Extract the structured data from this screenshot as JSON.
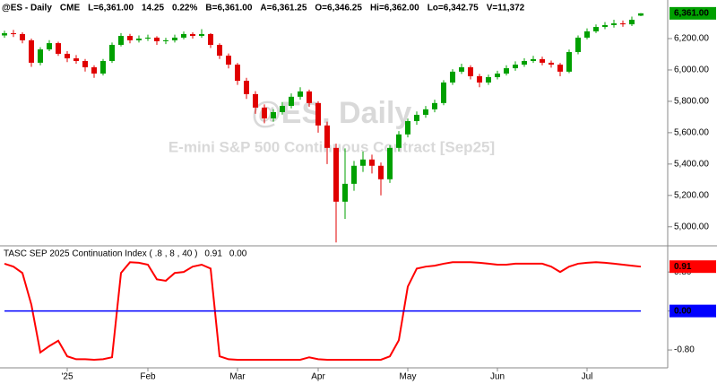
{
  "header": [
    "@ES - Daily",
    "CME",
    "L=6,361.00",
    "14.25",
    "0.22%",
    "B=6,361.00",
    "A=6,361.25",
    "O=6,346.25",
    "Hi=6,362.00",
    "Lo=6,342.75",
    "V=11,372"
  ],
  "watermark": {
    "symbol": "@ES, Daily",
    "name": "E-mini S&P 500 Continuous Contract [Sep25]"
  },
  "chart_data": [
    {
      "type": "candlestick",
      "up_color": "#00a000",
      "down_color": "#e00000",
      "open": [
        6220,
        6234,
        6229,
        6189,
        6046,
        6131,
        6171,
        6103,
        6074,
        6057,
        6017,
        5977,
        6057,
        6160,
        6217,
        6189,
        6200,
        6206,
        6183,
        6189,
        6206,
        6229,
        6217,
        6229,
        6160,
        6091,
        6034,
        5931,
        5846,
        5760,
        5691,
        5731,
        5771,
        5829,
        5863,
        5789,
        5646,
        5503,
        5160,
        5274,
        5389,
        5429,
        5389,
        5303,
        5503,
        5589,
        5674,
        5714,
        5749,
        5789,
        5920,
        5989,
        6017,
        5960,
        5920,
        5954,
        5977,
        6011,
        6034,
        6057,
        6069,
        6046,
        6034,
        5989,
        6114,
        6206,
        6246,
        6274,
        6286,
        6297,
        6291,
        6346.25
      ],
      "high": [
        6250,
        6255,
        6240,
        6200,
        6145,
        6190,
        6180,
        6120,
        6095,
        6070,
        6030,
        6070,
        6175,
        6235,
        6230,
        6220,
        6225,
        6215,
        6205,
        6225,
        6245,
        6240,
        6260,
        6235,
        6170,
        6105,
        6045,
        5950,
        5865,
        5780,
        5750,
        5795,
        5850,
        5890,
        5875,
        5800,
        5670,
        5530,
        5500,
        5420,
        5480,
        5460,
        5410,
        5520,
        5610,
        5690,
        5735,
        5770,
        5810,
        5935,
        6005,
        6040,
        6030,
        5975,
        5970,
        5995,
        6030,
        6055,
        6075,
        6090,
        6085,
        6060,
        6045,
        6130,
        6220,
        6265,
        6290,
        6305,
        6320,
        6315,
        6340,
        6362
      ],
      "low": [
        6205,
        6210,
        6170,
        6020,
        6030,
        6120,
        6090,
        6050,
        6040,
        5990,
        5950,
        5965,
        6045,
        6150,
        6170,
        6175,
        6185,
        6160,
        6165,
        6175,
        6195,
        6200,
        6205,
        6140,
        6070,
        6010,
        5905,
        5815,
        5720,
        5660,
        5670,
        5715,
        5755,
        5810,
        5765,
        5600,
        5400,
        4900,
        5050,
        5230,
        5350,
        5340,
        5200,
        5280,
        5480,
        5570,
        5650,
        5695,
        5730,
        5775,
        5905,
        5975,
        5940,
        5890,
        5905,
        5940,
        5965,
        5995,
        6020,
        6045,
        6030,
        6015,
        5960,
        5980,
        6100,
        6195,
        6235,
        6260,
        6270,
        6275,
        6280,
        6342.75
      ],
      "close": [
        6234,
        6229,
        6189,
        6046,
        6131,
        6171,
        6103,
        6074,
        6057,
        6017,
        5977,
        6057,
        6160,
        6217,
        6189,
        6200,
        6206,
        6183,
        6189,
        6206,
        6229,
        6217,
        6229,
        6160,
        6091,
        6034,
        5931,
        5846,
        5760,
        5691,
        5731,
        5771,
        5829,
        5863,
        5789,
        5646,
        5503,
        5160,
        5274,
        5389,
        5429,
        5389,
        5303,
        5503,
        5589,
        5674,
        5714,
        5749,
        5789,
        5920,
        5989,
        6017,
        5960,
        5920,
        5954,
        5977,
        6011,
        6034,
        6057,
        6069,
        6046,
        6034,
        5989,
        6114,
        6206,
        6246,
        6274,
        6286,
        6297,
        6291,
        6320,
        6361
      ],
      "last_value_label": "6,361.00",
      "ylim": [
        4890,
        6446
      ],
      "yticks": [
        {
          "value": 5000,
          "label": "5,000.00"
        },
        {
          "value": 5200,
          "label": "5,200.00"
        },
        {
          "value": 5400,
          "label": "5,400.00"
        },
        {
          "value": 5600,
          "label": "5,600.00"
        },
        {
          "value": 5800,
          "label": "5,800.00"
        },
        {
          "value": 6000,
          "label": "6,000.00"
        },
        {
          "value": 6200,
          "label": "6,200.00"
        }
      ]
    },
    {
      "type": "line",
      "title": "TASC SEP 2025 Continuation Index ( .8 , 8 , 40 )",
      "categories": [
        null,
        null,
        null,
        null,
        null,
        null,
        null,
        "'25",
        null,
        null,
        null,
        null,
        null,
        null,
        null,
        null,
        "Feb",
        null,
        null,
        null,
        null,
        null,
        null,
        null,
        null,
        null,
        "Mar",
        null,
        null,
        null,
        null,
        null,
        null,
        null,
        null,
        "Apr",
        null,
        null,
        null,
        null,
        null,
        null,
        null,
        null,
        null,
        "May",
        null,
        null,
        null,
        null,
        null,
        null,
        null,
        null,
        null,
        "Jun",
        null,
        null,
        null,
        null,
        null,
        null,
        null,
        null,
        null,
        "Jul",
        null,
        null,
        null,
        null,
        null,
        null
      ],
      "series": [
        {
          "color": "#ff0000",
          "last_value_label": "0.91",
          "values": [
            0.97,
            0.91,
            0.78,
            0.13,
            -0.85,
            -0.72,
            -0.61,
            -0.93,
            -0.99,
            -0.99,
            -1.0,
            -0.99,
            -0.95,
            0.78,
            1.0,
            0.99,
            0.95,
            0.65,
            0.62,
            0.78,
            0.8,
            0.91,
            0.95,
            0.87,
            -0.93,
            -0.99,
            -1.0,
            -1.0,
            -1.0,
            -1.0,
            -1.0,
            -1.0,
            -1.0,
            -1.0,
            -0.95,
            -0.99,
            -1.0,
            -1.0,
            -1.0,
            -1.0,
            -1.0,
            -1.0,
            -1.0,
            -0.93,
            -0.6,
            0.5,
            0.87,
            0.91,
            0.93,
            0.97,
            1.0,
            1.0,
            1.0,
            0.99,
            0.97,
            0.95,
            0.95,
            0.97,
            0.97,
            0.97,
            0.97,
            0.91,
            0.8,
            0.91,
            0.97,
            0.99,
            1.0,
            0.99,
            0.97,
            0.95,
            0.93,
            0.91
          ]
        },
        {
          "color": "#0000ff",
          "last_value_label": "0.00",
          "values": [
            0,
            0,
            0,
            0,
            0,
            0,
            0,
            0,
            0,
            0,
            0,
            0,
            0,
            0,
            0,
            0,
            0,
            0,
            0,
            0,
            0,
            0,
            0,
            0,
            0,
            0,
            0,
            0,
            0,
            0,
            0,
            0,
            0,
            0,
            0,
            0,
            0,
            0,
            0,
            0,
            0,
            0,
            0,
            0,
            0,
            0,
            0,
            0,
            0,
            0,
            0,
            0,
            0,
            0,
            0,
            0,
            0,
            0,
            0,
            0,
            0,
            0,
            0,
            0,
            0,
            0,
            0,
            0,
            0,
            0,
            0,
            0
          ]
        }
      ],
      "ylim": [
        -1.13,
        1.3
      ],
      "yticks": [
        {
          "value": -0.8,
          "label": "-0.80"
        },
        {
          "value": 0,
          "label": "0.00"
        },
        {
          "value": 0.8,
          "label": "0.80"
        }
      ]
    }
  ]
}
